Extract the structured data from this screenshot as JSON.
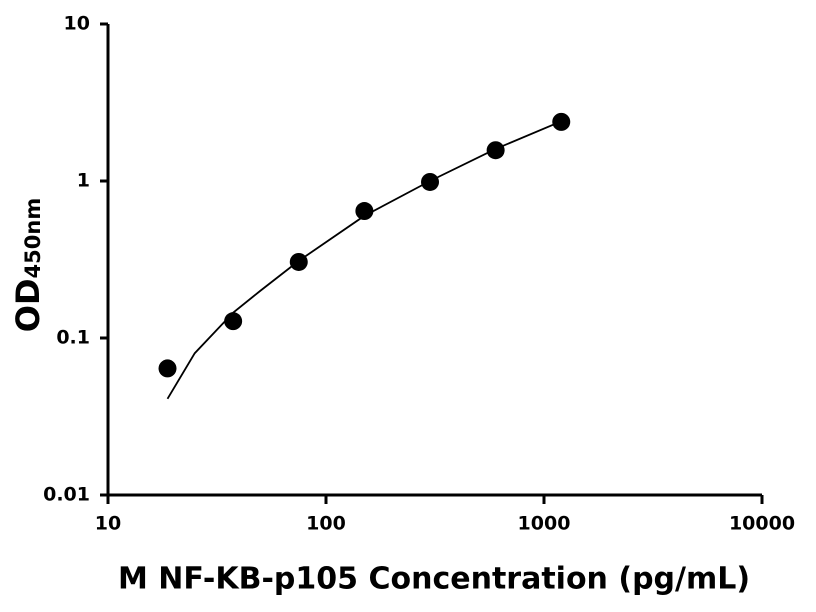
{
  "chart_data": {
    "type": "scatter",
    "xlabel": "M NF-KB-p105 Concentration (pg/mL)",
    "ylabel": "OD",
    "ylabel_subscript": "450nm",
    "xscale": "log",
    "yscale": "log",
    "xlim": [
      10,
      10000
    ],
    "xticks": [
      10,
      100,
      1000,
      10000
    ],
    "ylim": [
      0.01,
      10
    ],
    "yticks": [
      0.01,
      0.1,
      1,
      10
    ],
    "series": [
      {
        "style": "markers",
        "color": "#000000",
        "x": [
          18.75,
          37.5,
          75,
          150,
          300,
          600,
          1200
        ],
        "values": [
          0.064,
          0.128,
          0.305,
          0.644,
          0.986,
          1.57,
          2.38
        ]
      },
      {
        "style": "line",
        "color": "#000000",
        "x": [
          18.75,
          25,
          37.5,
          50,
          75,
          150,
          300,
          600,
          1200
        ],
        "values": [
          0.041,
          0.08,
          0.145,
          0.2,
          0.31,
          0.6,
          1.0,
          1.6,
          2.4
        ]
      }
    ]
  }
}
